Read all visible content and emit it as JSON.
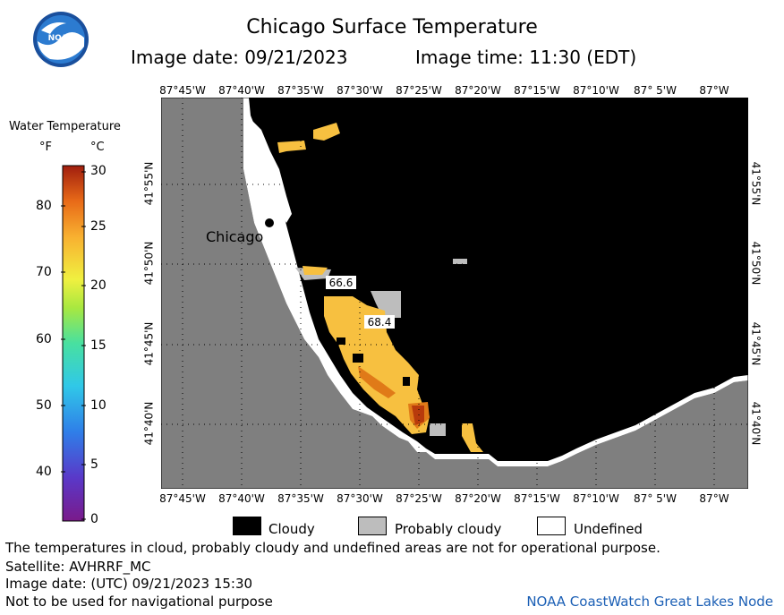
{
  "header": {
    "title": "Chicago Surface Temperature",
    "image_date": "Image date: 09/21/2023",
    "image_time": "Image time: 11:30 (EDT)",
    "logo_text": "NOAA"
  },
  "map": {
    "longitude_labels": [
      "87°45'W",
      "87°40'W",
      "87°35'W",
      "87°30'W",
      "87°25'W",
      "87°20'W",
      "87°15'W",
      "87°10'W",
      "87° 5'W",
      "87°W"
    ],
    "latitude_labels": [
      "41°55'N",
      "41°50'N",
      "41°45'N",
      "41°40'N"
    ],
    "city_label": "Chicago",
    "temperature_labels": [
      "66.6",
      "68.4"
    ],
    "colors": {
      "land": "#7f7f7f",
      "cloud": "#000000",
      "probably_cloudy": "#bdbdbd",
      "undefined": "#ffffff",
      "warm": "#f7c040",
      "hot": "#e07a18",
      "hottest": "#b83a0c"
    }
  },
  "scale": {
    "title": "Water Temperature",
    "unit_f": "°F",
    "unit_c": "°C",
    "fahrenheit_ticks": [
      "80",
      "70",
      "60",
      "50",
      "40"
    ],
    "celsius_ticks": [
      "30",
      "25",
      "20",
      "15",
      "10",
      "5",
      "0"
    ]
  },
  "legend": {
    "cloudy": "Cloudy",
    "probably_cloudy": "Probably cloudy",
    "undefined": "Undefined"
  },
  "footer": {
    "note": "The temperatures in cloud, probably cloudy and undefined areas are not for operational purpose.",
    "satellite": "Satellite: AVHRRF_MC",
    "utc_date": "Image date: (UTC) 09/21/2023  15:30",
    "navigation": "Not to be used for navigational purpose",
    "credit": "NOAA CoastWatch Great Lakes Node"
  }
}
